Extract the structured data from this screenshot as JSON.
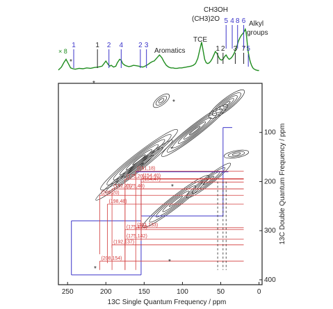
{
  "chart_data": [
    {
      "type": "line",
      "series": [
        {
          "name": "",
          "color": "#1e8c1e",
          "x": [
            262,
            258,
            255,
            252,
            249,
            246,
            243,
            240,
            235,
            230,
            225,
            220,
            215,
            210,
            205,
            200,
            197,
            195,
            193,
            190,
            187,
            185,
            182,
            180,
            178,
            175,
            172,
            170,
            167,
            164,
            160,
            157,
            155,
            152,
            150,
            147,
            145,
            142,
            139,
            137,
            135,
            132,
            130,
            127,
            124,
            121,
            118,
            115,
            112,
            110,
            107,
            104,
            101,
            98,
            95,
            92,
            89,
            86,
            83,
            80,
            77,
            75,
            73,
            71,
            69,
            67,
            65,
            63,
            61,
            59,
            57,
            55,
            53,
            51,
            49,
            47,
            45,
            43,
            41,
            39,
            37,
            35,
            33,
            31,
            29,
            27,
            25,
            23,
            21,
            19,
            18,
            17,
            16,
            15,
            14,
            13,
            12,
            11,
            10,
            9,
            8,
            7,
            6,
            5,
            4,
            3,
            2,
            1,
            0
          ],
          "values": [
            0.05,
            0.12,
            0.22,
            0.3,
            0.2,
            0.1,
            0.08,
            0.07,
            0.09,
            0.08,
            0.1,
            0.09,
            0.11,
            0.12,
            0.14,
            0.26,
            0.18,
            0.14,
            0.16,
            0.12,
            0.14,
            0.22,
            0.3,
            0.28,
            0.2,
            0.16,
            0.14,
            0.13,
            0.14,
            0.16,
            0.15,
            0.14,
            0.13,
            0.12,
            0.13,
            0.16,
            0.18,
            0.22,
            0.25,
            0.26,
            0.3,
            0.36,
            0.4,
            0.34,
            0.24,
            0.16,
            0.12,
            0.1,
            0.1,
            0.09,
            0.09,
            0.1,
            0.1,
            0.11,
            0.12,
            0.13,
            0.14,
            0.16,
            0.2,
            0.32,
            0.55,
            0.7,
            0.5,
            0.3,
            0.22,
            0.2,
            0.22,
            0.26,
            0.32,
            0.4,
            0.48,
            0.44,
            0.36,
            0.3,
            0.28,
            0.3,
            0.36,
            0.4,
            0.34,
            0.3,
            0.32,
            0.36,
            0.42,
            0.5,
            0.6,
            0.72,
            0.8,
            0.86,
            0.9,
            0.96,
            1.0,
            0.94,
            0.78,
            0.6,
            0.46,
            0.36,
            0.28,
            0.22,
            0.17,
            0.13,
            0.1,
            0.08,
            0.07,
            0.06,
            0.05,
            0.05,
            0.04,
            0.04,
            0.04
          ]
        }
      ],
      "xlim": [
        262,
        -4
      ],
      "annotations": {
        "x8": "× 8",
        "star": "*",
        "aromatics": "Aromatics",
        "tce": "TCE",
        "ch3oh": "CH3OH",
        "ch32o": "(CH3)2O",
        "alkyl1": "Alkyl",
        "alkyl2": "groups"
      },
      "peak_labels": [
        {
          "text": "1",
          "x": 242,
          "color": "#3a33c9"
        },
        {
          "text": "1",
          "x": 211,
          "color": "#222222"
        },
        {
          "text": "2",
          "x": 196,
          "color": "#3a33c9"
        },
        {
          "text": "4",
          "x": 180,
          "color": "#3a33c9"
        },
        {
          "text": "2",
          "x": 155,
          "color": "#3a33c9"
        },
        {
          "text": "3",
          "x": 147,
          "color": "#3a33c9"
        },
        {
          "text": "1",
          "x": 54,
          "color": "#222222"
        },
        {
          "text": "2",
          "x": 47,
          "color": "#222222"
        },
        {
          "text": "3",
          "x": 31,
          "color": "#222222"
        },
        {
          "text": "7",
          "x": 20,
          "color": "#222222"
        },
        {
          "text": "5",
          "x": 14,
          "color": "#3a33c9"
        },
        {
          "text": "5",
          "x": 43,
          "color": "#3a33c9"
        },
        {
          "text": "4",
          "x": 35,
          "color": "#3a33c9"
        },
        {
          "text": "8",
          "x": 28,
          "color": "#3a33c9"
        },
        {
          "text": "6",
          "x": 20,
          "color": "#3a33c9"
        }
      ]
    },
    {
      "type": "heatmap",
      "xlabel": "13C Single Quantum Frequency / ppm",
      "ylabel": "13C Double Quantum Frequency / ppm",
      "xlim": [
        262,
        -4
      ],
      "ylim": [
        0,
        410
      ],
      "xticks": [
        250,
        200,
        150,
        100,
        50,
        0
      ],
      "yticks": [
        100,
        200,
        300,
        400
      ],
      "correlation_labels": [
        {
          "text": "(154,47)",
          "x": 154,
          "y": 201
        },
        {
          "text": "(161,18)",
          "x": 161,
          "y": 179
        },
        {
          "text": "(175,20)",
          "x": 175,
          "y": 195
        },
        {
          "text": "(154,40)",
          "x": 154,
          "y": 194
        },
        {
          "text": "(175,40)",
          "x": 175,
          "y": 215
        },
        {
          "text": "(208,20)",
          "x": 208,
          "y": 228
        },
        {
          "text": "(192,23)",
          "x": 192,
          "y": 215
        },
        {
          "text": "(198,48)",
          "x": 198,
          "y": 246
        },
        {
          "text": "(161,133)",
          "x": 161,
          "y": 294
        },
        {
          "text": "(175,123)",
          "x": 175,
          "y": 298
        },
        {
          "text": "(192,137)",
          "x": 192,
          "y": 329
        },
        {
          "text": "(175,142)",
          "x": 175,
          "y": 317
        },
        {
          "text": "(208,154)",
          "x": 208,
          "y": 362
        }
      ],
      "annotation_color": "#d23a3a",
      "box_color": "#3a33c9",
      "ridges": [
        {
          "name": "diagonal-aromatic-upper"
        },
        {
          "name": "diagonal-aromatic-lower"
        },
        {
          "name": "carbonyl-alkyl"
        },
        {
          "name": "alkyl-diagonal"
        }
      ]
    }
  ]
}
